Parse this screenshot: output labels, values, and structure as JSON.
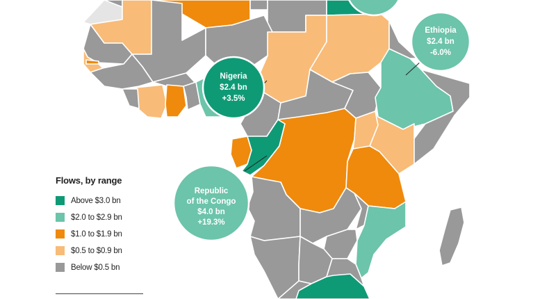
{
  "legend": {
    "title": "Flows, by range",
    "items": [
      {
        "label": "Above $3.0 bn",
        "color": "#0f9a76"
      },
      {
        "label": "$2.0 to $2.9 bn",
        "color": "#6cc4aa"
      },
      {
        "label": "$1.0 to $1.9 bn",
        "color": "#ef8a0d"
      },
      {
        "label": "$0.5 to $0.9 bn",
        "color": "#f8bb78"
      },
      {
        "label": "Below $0.5 bn",
        "color": "#999999"
      }
    ]
  },
  "callouts": {
    "nigeria": {
      "name": "Nigeria",
      "amount": "$2.4 bn",
      "change": "+3.5%"
    },
    "ethiopia": {
      "name": "Ethiopia",
      "amount": "$2.4 bn",
      "change": "-6.0%"
    },
    "congo": {
      "name_line1": "Republic",
      "name_line2": "of the Congo",
      "amount": "$4.0 bn",
      "change": "+19.3%"
    }
  },
  "colors": {
    "above3": "#0f9a76",
    "two_to_three": "#6cc4aa",
    "one_to_two": "#ef8a0d",
    "half_to_one": "#f8bb78",
    "below_half": "#999999",
    "no_data": "#e5e5e5"
  }
}
